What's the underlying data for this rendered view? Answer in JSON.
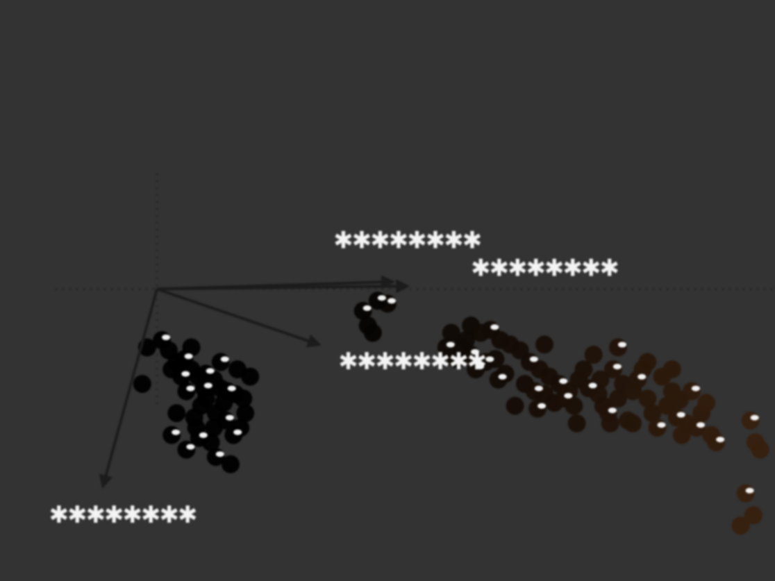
{
  "chart_data": {
    "type": "scatter",
    "title": "",
    "xlabel": "",
    "ylabel": "",
    "grid": false,
    "reference_lines": {
      "x": 0,
      "y": 0
    },
    "xlim": [
      -1.6,
      6.3
    ],
    "ylim": [
      -2.0,
      1.98
    ],
    "color_scale": [
      "#000000",
      "#3d2310"
    ],
    "annotations": [
      {
        "label_glyph": "✱",
        "label": "scribbled label (illegible)",
        "arrow_to": [
          -0.55,
          -1.35
        ],
        "label_at": [
          -1.1,
          -1.6
        ]
      },
      {
        "label_glyph": "✱",
        "label": "scribbled label (illegible)",
        "arrow_to": [
          1.65,
          -0.38
        ],
        "label_at": [
          1.85,
          -0.55
        ]
      },
      {
        "label_glyph": "✱",
        "label": "scribbled label (illegible)",
        "arrow_to": [
          2.4,
          0.05
        ],
        "label_at": [
          1.8,
          0.28
        ]
      },
      {
        "label_glyph": "✱",
        "label": "scribbled label (illegible)",
        "arrow_to": [
          2.55,
          0.02
        ],
        "label_at": [
          3.2,
          0.09
        ]
      }
    ],
    "series": [
      {
        "points": [
          [
            0.05,
            -0.35,
            0.0
          ],
          [
            0.12,
            -0.42,
            0.0
          ],
          [
            0.2,
            -0.5,
            0.0
          ],
          [
            0.28,
            -0.48,
            0.0
          ],
          [
            0.35,
            -0.55,
            0.0
          ],
          [
            0.42,
            -0.6,
            0.0
          ],
          [
            0.5,
            -0.58,
            0.0
          ],
          [
            0.58,
            -0.62,
            0.0
          ],
          [
            0.65,
            -0.68,
            0.0
          ],
          [
            0.72,
            -0.7,
            0.0
          ],
          [
            0.8,
            -0.72,
            0.0
          ],
          [
            0.88,
            -0.75,
            0.0
          ],
          [
            0.3,
            -0.7,
            0.0
          ],
          [
            0.45,
            -0.8,
            0.0
          ],
          [
            0.6,
            -0.85,
            0.0
          ],
          [
            0.7,
            -0.9,
            0.0
          ],
          [
            0.85,
            -0.95,
            0.0
          ],
          [
            0.95,
            -0.6,
            0.0
          ],
          [
            0.25,
            -0.6,
            0.0
          ],
          [
            0.4,
            -0.95,
            0.0
          ],
          [
            0.55,
            -1.05,
            0.0
          ],
          [
            0.3,
            -1.1,
            0.0
          ],
          [
            0.15,
            -0.55,
            0.0
          ],
          [
            0.35,
            -0.4,
            0.0
          ],
          [
            0.65,
            -0.5,
            0.0
          ],
          [
            0.9,
            -0.85,
            0.0
          ],
          [
            0.5,
            -0.75,
            0.0
          ],
          [
            0.78,
            -1.0,
            0.0
          ],
          [
            -0.15,
            -0.65,
            0.0
          ],
          [
            -0.1,
            -0.4,
            0.0
          ],
          [
            0.6,
            -1.15,
            0.0
          ],
          [
            0.75,
            -1.2,
            0.0
          ],
          [
            0.2,
            -0.85,
            0.0
          ],
          [
            0.48,
            -0.68,
            0.0
          ],
          [
            0.68,
            -0.78,
            0.0
          ],
          [
            0.82,
            -0.55,
            0.0
          ],
          [
            0.15,
            -1.0,
            0.0
          ],
          [
            0.38,
            -0.88,
            0.0
          ],
          [
            0.58,
            -0.95,
            0.0
          ],
          [
            0.43,
            -1.02,
            0.0
          ]
        ]
      },
      {
        "points": [
          [
            2.1,
            -0.15,
            0.1
          ],
          [
            2.15,
            -0.25,
            0.1
          ],
          [
            2.2,
            -0.3,
            0.1
          ],
          [
            2.35,
            -0.1,
            0.15
          ],
          [
            3.2,
            -0.25,
            0.25
          ],
          [
            3.3,
            -0.3,
            0.3
          ],
          [
            3.4,
            -0.28,
            0.3
          ],
          [
            3.5,
            -0.35,
            0.3
          ],
          [
            3.1,
            -0.4,
            0.25
          ],
          [
            3.2,
            -0.45,
            0.25
          ],
          [
            3.6,
            -0.38,
            0.35
          ],
          [
            3.7,
            -0.42,
            0.35
          ],
          [
            3.8,
            -0.5,
            0.35
          ],
          [
            3.9,
            -0.55,
            0.4
          ],
          [
            3.0,
            -0.3,
            0.25
          ],
          [
            3.35,
            -0.5,
            0.3
          ],
          [
            3.45,
            -0.48,
            0.3
          ],
          [
            4.0,
            -0.6,
            0.4
          ],
          [
            4.1,
            -0.65,
            0.4
          ],
          [
            4.2,
            -0.7,
            0.45
          ],
          [
            4.3,
            -0.62,
            0.45
          ],
          [
            4.4,
            -0.68,
            0.45
          ],
          [
            3.95,
            -0.72,
            0.4
          ],
          [
            4.05,
            -0.78,
            0.4
          ],
          [
            4.15,
            -0.75,
            0.45
          ],
          [
            4.25,
            -0.8,
            0.45
          ],
          [
            3.75,
            -0.65,
            0.35
          ],
          [
            3.85,
            -0.7,
            0.4
          ],
          [
            4.5,
            -0.72,
            0.5
          ],
          [
            4.55,
            -0.8,
            0.5
          ],
          [
            4.6,
            -0.85,
            0.55
          ],
          [
            4.7,
            -0.75,
            0.55
          ],
          [
            4.75,
            -0.65,
            0.55
          ],
          [
            4.65,
            -0.55,
            0.55
          ],
          [
            4.8,
            -0.9,
            0.6
          ],
          [
            4.85,
            -0.7,
            0.6
          ],
          [
            4.9,
            -0.62,
            0.6
          ],
          [
            5.0,
            -0.75,
            0.65
          ],
          [
            5.05,
            -0.85,
            0.65
          ],
          [
            5.1,
            -0.95,
            0.7
          ],
          [
            5.2,
            -0.8,
            0.7
          ],
          [
            5.25,
            -0.7,
            0.7
          ],
          [
            5.3,
            -0.88,
            0.7
          ],
          [
            5.35,
            -1.0,
            0.75
          ],
          [
            5.4,
            -0.92,
            0.75
          ],
          [
            5.5,
            -0.95,
            0.75
          ],
          [
            5.55,
            -0.85,
            0.75
          ],
          [
            5.65,
            -1.0,
            0.8
          ],
          [
            5.7,
            -1.05,
            0.8
          ],
          [
            4.95,
            -0.55,
            0.65
          ],
          [
            5.15,
            -0.6,
            0.7
          ],
          [
            5.45,
            -0.7,
            0.75
          ],
          [
            4.45,
            -0.45,
            0.5
          ],
          [
            4.35,
            -0.55,
            0.45
          ],
          [
            4.7,
            -0.4,
            0.55
          ],
          [
            5.0,
            -0.5,
            0.65
          ],
          [
            5.25,
            -0.55,
            0.7
          ],
          [
            6.05,
            -0.9,
            0.9
          ],
          [
            6.1,
            -1.05,
            0.9
          ],
          [
            6.15,
            -1.1,
            0.9
          ],
          [
            6.0,
            -1.4,
            0.9
          ],
          [
            6.08,
            -1.55,
            0.9
          ],
          [
            5.95,
            -1.62,
            0.9
          ],
          [
            6.45,
            -0.85,
            1.0
          ],
          [
            3.65,
            -0.8,
            0.35
          ],
          [
            3.15,
            -0.35,
            0.25
          ],
          [
            3.25,
            -0.55,
            0.3
          ],
          [
            3.55,
            -0.58,
            0.3
          ],
          [
            3.05,
            -0.48,
            0.25
          ],
          [
            2.95,
            -0.4,
            0.25
          ],
          [
            4.85,
            -0.92,
            0.6
          ],
          [
            5.6,
            -0.78,
            0.8
          ],
          [
            3.48,
            -0.62,
            0.3
          ],
          [
            3.95,
            -0.38,
            0.4
          ],
          [
            4.52,
            -0.62,
            0.5
          ],
          [
            3.88,
            -0.82,
            0.4
          ],
          [
            4.62,
            -0.92,
            0.55
          ],
          [
            5.33,
            -0.76,
            0.7
          ],
          [
            2.25,
            -0.08,
            0.1
          ],
          [
            4.28,
            -0.92,
            0.45
          ]
        ]
      }
    ]
  }
}
